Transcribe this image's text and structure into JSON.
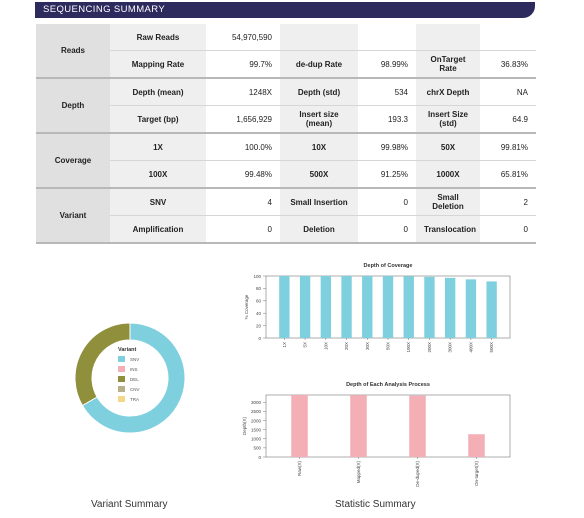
{
  "header": {
    "title": "SEQUENCING SUMMARY"
  },
  "summary": {
    "reads_group": "Reads",
    "raw_reads_label": "Raw Reads",
    "raw_reads_value": "54,970,590",
    "mapping_rate_label": "Mapping Rate",
    "mapping_rate_value": "99.7%",
    "dedup_rate_label": "de-dup Rate",
    "dedup_rate_value": "98.99%",
    "ontarget_rate_label": "OnTarget Rate",
    "ontarget_rate_value": "36.83%",
    "depth_group": "Depth",
    "depth_mean_label": "Depth (mean)",
    "depth_mean_value": "1248X",
    "depth_std_label": "Depth (std)",
    "depth_std_value": "534",
    "chrx_depth_label": "chrX Depth",
    "chrx_depth_value": "NA",
    "target_bp_label": "Target (bp)",
    "target_bp_value": "1,656,929",
    "insert_mean_label": "Insert size (mean)",
    "insert_mean_value": "193.3",
    "insert_std_label": "Insert Size (std)",
    "insert_std_value": "64.9",
    "coverage_group": "Coverage",
    "cov_1x_label": "1X",
    "cov_1x_value": "100.0%",
    "cov_10x_label": "10X",
    "cov_10x_value": "99.98%",
    "cov_50x_label": "50X",
    "cov_50x_value": "99.81%",
    "cov_100x_label": "100X",
    "cov_100x_value": "99.48%",
    "cov_500x_label": "500X",
    "cov_500x_value": "91.25%",
    "cov_1000x_label": "1000X",
    "cov_1000x_value": "65.81%",
    "variant_group": "Variant",
    "snv_label": "SNV",
    "snv_value": "4",
    "small_ins_label": "Small Insertion",
    "small_ins_value": "0",
    "small_del_label": "Small Deletion",
    "small_del_value": "2",
    "amp_label": "Amplification",
    "amp_value": "0",
    "deletion_label": "Deletion",
    "deletion_value": "0",
    "transloc_label": "Translocation",
    "transloc_value": "0"
  },
  "captions": {
    "variant_summary": "Variant Summary",
    "statistic_summary": "Statistic Summary"
  },
  "chart_data": [
    {
      "type": "pie",
      "donut": true,
      "title": "Variant",
      "categories": [
        "SNV",
        "INS",
        "DEL",
        "CNV",
        "TRA"
      ],
      "values": [
        4,
        0,
        2,
        0,
        0
      ],
      "colors": [
        "#7fd0de",
        "#f3aeb6",
        "#8f8f3c",
        "#b8b08a",
        "#f2d98a"
      ],
      "legend": "center"
    },
    {
      "type": "bar",
      "title": "Depth of Coverage",
      "xlabel": "",
      "ylabel": "% Coverage",
      "categories": [
        "1X",
        "5X",
        "10X",
        "20X",
        "30X",
        "50X",
        "100X",
        "200X",
        "300X",
        "400X",
        "500X"
      ],
      "values": [
        100.0,
        99.99,
        99.98,
        99.95,
        99.9,
        99.81,
        99.48,
        98.6,
        97.0,
        94.6,
        91.25
      ],
      "ylim": [
        0,
        100
      ],
      "yticks": [
        0,
        20,
        40,
        60,
        80,
        100
      ],
      "color": "#7fd0de",
      "grid": false
    },
    {
      "type": "bar",
      "title": "Depth of Each Analysis Process",
      "xlabel": "",
      "ylabel": "Depth(X)",
      "categories": [
        "Raw(X)",
        "Mapped(X)",
        "De-duped(X)",
        "On-target(X)"
      ],
      "values": [
        3400,
        3390,
        3360,
        1248
      ],
      "ylim": [
        0,
        3400
      ],
      "yticks": [
        0,
        500,
        1000,
        1500,
        2000,
        2500,
        3000
      ],
      "color": "#f3aeb6",
      "grid": false
    }
  ]
}
